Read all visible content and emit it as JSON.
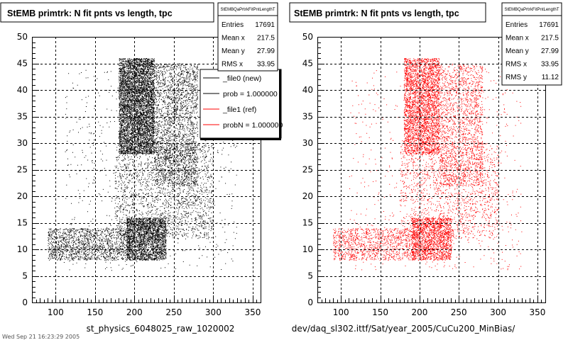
{
  "colors": {
    "background": "#ffffff",
    "ref_points": "#ff0000",
    "new_points": "#000000",
    "axis": "#000000",
    "grid": "#000000"
  },
  "chart_data": [
    {
      "type": "scatter",
      "title": "StEMB primtrk: N fit pnts vs length, tpc",
      "xlabel": "st_physics_6048025_raw_1020002",
      "ylabel": "",
      "xlim": [
        70,
        360
      ],
      "ylim": [
        0,
        50
      ],
      "x_ticks": [
        100,
        150,
        200,
        250,
        300,
        350
      ],
      "y_ticks": [
        0,
        5,
        10,
        15,
        20,
        25,
        30,
        35,
        40,
        45,
        50
      ],
      "grid": true,
      "point_color": "#000000",
      "stats": {
        "header": "StEMBQaPrtrkFitPntLengthT",
        "rows": [
          {
            "label": "Entries",
            "value": "17691"
          },
          {
            "label": "Mean x",
            "value": "217.5"
          },
          {
            "label": "Mean y",
            "value": "27.99"
          },
          {
            "label": "RMS x",
            "value": "33.95"
          }
        ]
      },
      "legend": {
        "placement": "top-right",
        "entries": [
          {
            "label": "_file0 (new)",
            "color": "#000000"
          },
          {
            "label": "prob = 1.000000",
            "color": "#000000"
          },
          {
            "label": "_file1 (ref)",
            "color": "#ff0000"
          },
          {
            "label": "probN = 1.000000",
            "color": "#ff0000"
          }
        ]
      },
      "density": [
        {
          "x_range": [
            180,
            225
          ],
          "y_range": [
            28,
            46
          ],
          "count": 5200
        },
        {
          "x_range": [
            225,
            280
          ],
          "y_range": [
            22,
            45
          ],
          "count": 2200
        },
        {
          "x_range": [
            190,
            240
          ],
          "y_range": [
            8,
            16
          ],
          "count": 2300
        },
        {
          "x_range": [
            90,
            195
          ],
          "y_range": [
            8,
            14
          ],
          "count": 1500
        },
        {
          "x_range": [
            175,
            300
          ],
          "y_range": [
            12,
            30
          ],
          "count": 1900
        },
        {
          "x_range": [
            110,
            330
          ],
          "y_range": [
            6,
            44
          ],
          "count": 700
        }
      ]
    },
    {
      "type": "scatter",
      "title": "StEMB primtrk: N fit pnts vs length, tpc",
      "xlabel": "dev/daq_sl302.ittf/Sat/year_2005/CuCu200_MinBias/",
      "ylabel": "",
      "xlim": [
        70,
        360
      ],
      "ylim": [
        0,
        50
      ],
      "x_ticks": [
        100,
        150,
        200,
        250,
        300,
        350
      ],
      "y_ticks": [
        0,
        5,
        10,
        15,
        20,
        25,
        30,
        35,
        40,
        45,
        50
      ],
      "grid": true,
      "point_color": "#ff0000",
      "stats": {
        "header": "StEMBQaPrtrkFitPntLengthT",
        "rows": [
          {
            "label": "Entries",
            "value": "17691"
          },
          {
            "label": "Mean x",
            "value": "217.5"
          },
          {
            "label": "Mean y",
            "value": "27.99"
          },
          {
            "label": "RMS x",
            "value": "33.95"
          },
          {
            "label": "RMS y",
            "value": "11.12"
          }
        ]
      },
      "density": [
        {
          "x_range": [
            180,
            225
          ],
          "y_range": [
            28,
            46
          ],
          "count": 3200
        },
        {
          "x_range": [
            225,
            280
          ],
          "y_range": [
            22,
            45
          ],
          "count": 1600
        },
        {
          "x_range": [
            190,
            240
          ],
          "y_range": [
            8,
            16
          ],
          "count": 1700
        },
        {
          "x_range": [
            90,
            195
          ],
          "y_range": [
            8,
            14
          ],
          "count": 1100
        },
        {
          "x_range": [
            175,
            300
          ],
          "y_range": [
            12,
            30
          ],
          "count": 1500
        },
        {
          "x_range": [
            110,
            330
          ],
          "y_range": [
            6,
            44
          ],
          "count": 600
        }
      ]
    }
  ],
  "footer_text": "Wed Sep 21 16:23:29 2005"
}
